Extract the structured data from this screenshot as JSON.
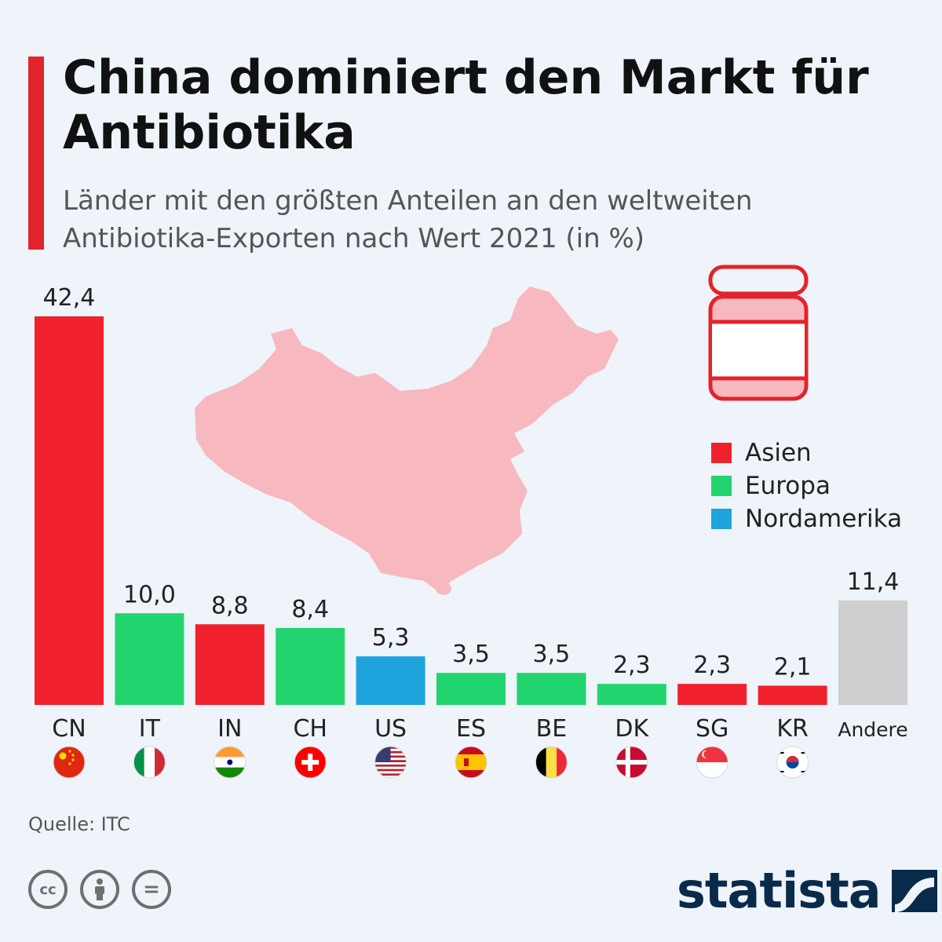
{
  "header": {
    "title": "China dominiert den Markt für Antibiotika",
    "subtitle": "Länder mit den größten Anteilen an den weltweiten Antibiotika-Exporten nach Wert 2021 (in %)"
  },
  "colors": {
    "accent": "#e3232b",
    "asia": "#f0212d",
    "europe": "#22d46e",
    "north_america": "#1fa3dc",
    "other": "#cfcfcf",
    "map": "#f8b8bf",
    "brand": "#0a2a4a"
  },
  "legend": {
    "items": [
      {
        "label": "Asien",
        "color": "#f0212d"
      },
      {
        "label": "Europa",
        "color": "#22d46e"
      },
      {
        "label": "Nordamerika",
        "color": "#1fa3dc"
      }
    ]
  },
  "chart_data": {
    "type": "bar",
    "title": "China dominiert den Markt für Antibiotika",
    "subtitle": "Länder mit den größten Anteilen an den weltweiten Antibiotika-Exporten nach Wert 2021 (in %)",
    "categories": [
      "CN",
      "IT",
      "IN",
      "CH",
      "US",
      "ES",
      "BE",
      "DK",
      "SG",
      "KR",
      "Andere"
    ],
    "values": [
      42.4,
      10.0,
      8.8,
      8.4,
      5.3,
      3.5,
      3.5,
      2.3,
      2.3,
      2.1,
      11.4
    ],
    "value_labels": [
      "42,4",
      "10,0",
      "8,8",
      "8,4",
      "5,3",
      "3,5",
      "3,5",
      "2,3",
      "2,3",
      "2,1",
      "11,4"
    ],
    "regions": [
      "Asien",
      "Europa",
      "Asien",
      "Europa",
      "Nordamerika",
      "Europa",
      "Europa",
      "Europa",
      "Asien",
      "Asien",
      "Andere"
    ],
    "flags": [
      "flag-china-icon",
      "flag-italy-icon",
      "flag-india-icon",
      "flag-switzerland-icon",
      "flag-usa-icon",
      "flag-spain-icon",
      "flag-belgium-icon",
      "flag-denmark-icon",
      "flag-singapore-icon",
      "flag-south-korea-icon",
      ""
    ],
    "xlabel": "",
    "ylabel": "",
    "ylim": [
      0,
      42.4
    ],
    "grid": false,
    "legend_position": "right"
  },
  "illustrations": [
    "china-map",
    "pill-jar-icon"
  ],
  "footer": {
    "source": "Quelle: ITC",
    "brand": "statista",
    "license_icons": [
      "cc-icon",
      "by-icon",
      "nd-icon"
    ],
    "cc_label": "cc",
    "nd_label": "="
  }
}
